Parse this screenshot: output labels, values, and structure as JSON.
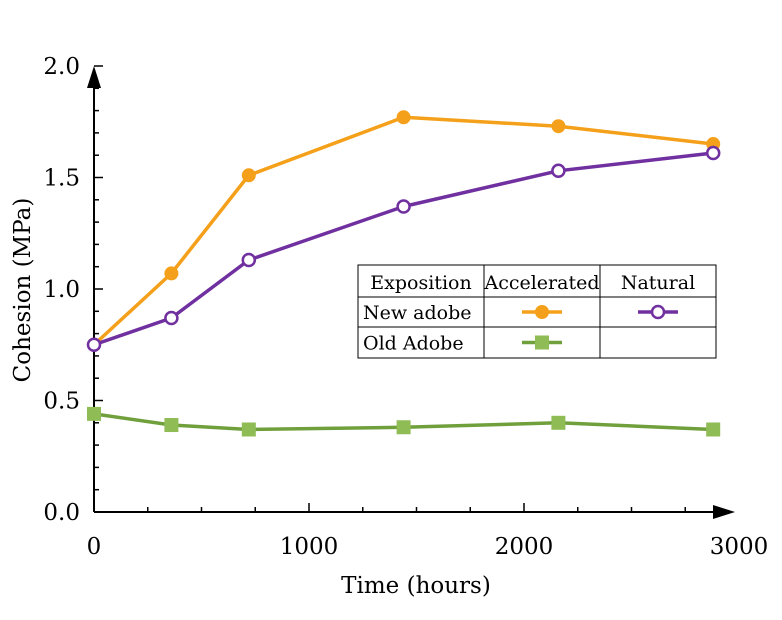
{
  "chart_data": {
    "type": "line",
    "title": "",
    "xlabel": "Time (hours)",
    "ylabel": "Cohesion (MPa)",
    "xlim": [
      0,
      3000
    ],
    "ylim": [
      0,
      2.0
    ],
    "xticks": [
      0,
      1000,
      2000,
      3000
    ],
    "xtick_labels": [
      "0",
      "1000",
      "2000",
      "3000"
    ],
    "yticks": [
      0,
      0.5,
      1.0,
      1.5,
      2.0
    ],
    "ytick_labels": [
      "0.0",
      "0.5",
      "1.0",
      "1.5",
      "2.0"
    ],
    "grid": false,
    "series": [
      {
        "key": "new_accelerated",
        "color": "#F5A01A",
        "marker": "filled-circle",
        "x": [
          0,
          360,
          720,
          1440,
          2160,
          2880
        ],
        "y": [
          0.75,
          1.07,
          1.51,
          1.77,
          1.73,
          1.65
        ]
      },
      {
        "key": "new_natural",
        "color": "#7030A0",
        "marker": "open-circle",
        "x": [
          0,
          360,
          720,
          1440,
          2160,
          2880
        ],
        "y": [
          0.75,
          0.87,
          1.13,
          1.37,
          1.53,
          1.61
        ]
      },
      {
        "key": "old_accelerated",
        "color": "#70A03C",
        "marker_color": "#8FBC55",
        "marker": "filled-square",
        "x": [
          0,
          360,
          720,
          1440,
          2160,
          2880
        ],
        "y": [
          0.44,
          0.39,
          0.37,
          0.38,
          0.4,
          0.37
        ]
      }
    ],
    "legend": {
      "placement": "center-right",
      "header": [
        "Exposition",
        "Accelerated",
        "Natural"
      ],
      "rows": [
        {
          "label": "New adobe",
          "cells": [
            "new_accelerated",
            "new_natural"
          ]
        },
        {
          "label": "Old Adobe",
          "cells": [
            "old_accelerated",
            ""
          ]
        }
      ]
    }
  }
}
